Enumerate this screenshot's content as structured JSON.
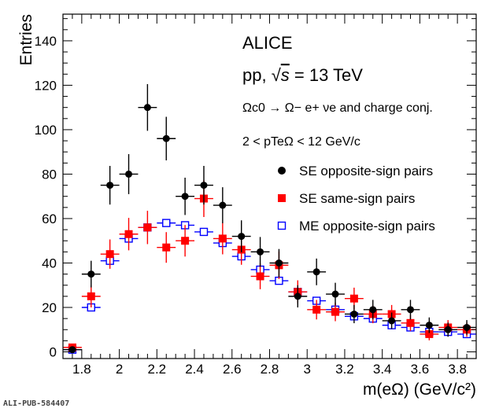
{
  "chart_data": {
    "type": "scatter",
    "title": "",
    "experiment": "ALICE",
    "system_prefix": "pp, ",
    "system_sqrt": "√",
    "system_s": "s",
    "system_energy": " = 13 TeV",
    "decay_text": "Ωc0 → Ω− e+ νe and charge conj.",
    "pt_range_text": "2 < pTeΩ < 12 GeV/c",
    "xlabel": "m(eΩ) (GeV/c²)",
    "ylabel": "Entries",
    "xlim": [
      1.7,
      3.9
    ],
    "ylim": [
      -3,
      152
    ],
    "x_ticks": [
      1.8,
      2,
      2.2,
      2.4,
      2.6,
      2.8,
      3,
      3.2,
      3.4,
      3.6,
      3.8
    ],
    "x_tick_labels": [
      "1.8",
      "2",
      "2.2",
      "2.4",
      "2.6",
      "2.8",
      "3",
      "3.2",
      "3.4",
      "3.6",
      "3.8"
    ],
    "y_ticks": [
      0,
      20,
      40,
      60,
      80,
      100,
      120,
      140
    ],
    "y_tick_labels": [
      "0",
      "20",
      "40",
      "60",
      "80",
      "100",
      "120",
      "140"
    ],
    "bin_width": 0.1,
    "legend_position": "right",
    "grid": false,
    "source_label": "ALI-PUB-584407",
    "series": [
      {
        "name": "SE opposite-sign pairs",
        "marker": "filled-circle",
        "color": "#000000",
        "x": [
          1.75,
          1.85,
          1.95,
          2.05,
          2.15,
          2.25,
          2.35,
          2.45,
          2.55,
          2.65,
          2.75,
          2.85,
          2.95,
          3.05,
          3.15,
          3.25,
          3.35,
          3.45,
          3.55,
          3.65,
          3.75,
          3.85
        ],
        "y": [
          1,
          35,
          75,
          80,
          110,
          96,
          70,
          75,
          66,
          52,
          45,
          40,
          25,
          36,
          26,
          17,
          19,
          14,
          19,
          12,
          10,
          11
        ],
        "yerr": [
          1.2,
          6,
          8.7,
          9,
          10.5,
          9.8,
          8.4,
          8.7,
          8.1,
          7.2,
          6.7,
          6.3,
          5,
          6,
          5.1,
          4.1,
          4.4,
          3.7,
          4.4,
          3.5,
          3.2,
          3.3
        ]
      },
      {
        "name": "SE same-sign pairs",
        "marker": "filled-square",
        "color": "#ff0000",
        "x": [
          1.75,
          1.85,
          1.95,
          2.05,
          2.15,
          2.25,
          2.35,
          2.45,
          2.55,
          2.65,
          2.75,
          2.85,
          2.95,
          3.05,
          3.15,
          3.25,
          3.35,
          3.45,
          3.55,
          3.65,
          3.75,
          3.85
        ],
        "y": [
          2,
          25,
          44,
          53,
          56,
          47,
          50,
          69,
          51,
          46,
          34,
          39,
          27,
          19,
          18,
          24,
          17,
          17,
          13,
          8,
          11,
          10
        ],
        "yerr": [
          1.4,
          5,
          6.6,
          7.3,
          7.5,
          6.9,
          7.1,
          8.3,
          7.1,
          6.8,
          5.8,
          6.2,
          5.2,
          4.4,
          4.2,
          4.9,
          4.1,
          4.1,
          3.6,
          2.8,
          3.3,
          3.2
        ]
      },
      {
        "name": "ME opposite-sign pairs",
        "marker": "open-square",
        "color": "#0000ff",
        "x": [
          1.75,
          1.85,
          1.95,
          2.05,
          2.15,
          2.25,
          2.35,
          2.45,
          2.55,
          2.65,
          2.75,
          2.85,
          2.95,
          3.05,
          3.15,
          3.25,
          3.35,
          3.45,
          3.55,
          3.65,
          3.75,
          3.85
        ],
        "y": [
          1,
          20,
          41,
          51,
          56,
          58,
          57,
          54,
          49,
          43,
          37,
          32,
          27,
          23,
          19,
          16,
          15,
          12,
          11,
          9,
          9,
          8
        ]
      }
    ]
  }
}
